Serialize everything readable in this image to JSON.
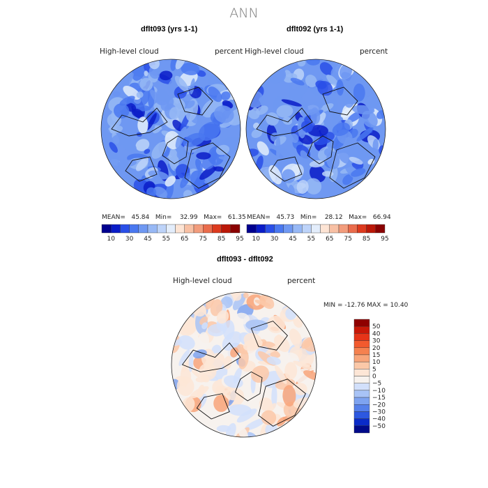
{
  "title": "ANN",
  "panels": [
    {
      "title": "dflt093 (yrs 1-1)",
      "field_label": "High-level cloud",
      "units": "percent",
      "stats": {
        "mean_label": "MEAN=",
        "mean": "45.84",
        "min_label": "Min=",
        "min": "32.99",
        "max_label": "Max=",
        "max": "61.35"
      }
    },
    {
      "title": "dflt092 (yrs 1-1)",
      "field_label": "High-level cloud",
      "units": "percent",
      "stats": {
        "mean_label": "MEAN=",
        "mean": "45.73",
        "min_label": "Min=",
        "min": "28.12",
        "max_label": "Max=",
        "max": "66.94"
      }
    }
  ],
  "diff_panel": {
    "title": "dflt093 - dflt092",
    "field_label": "High-level cloud",
    "units": "percent",
    "stats_text": "MIN = -12.76 MAX =  10.40"
  },
  "chart_data": [
    {
      "type": "heatmap",
      "title": "dflt093 (yrs 1-1)",
      "projection": "north polar stereographic",
      "variable": "High-level cloud",
      "units": "percent",
      "mean": 45.84,
      "min": 32.99,
      "max": 61.35,
      "colorbar": {
        "ticks": [
          "10",
          "30",
          "45",
          "55",
          "65",
          "75",
          "85",
          "95"
        ],
        "colors": [
          "#00008f",
          "#0a1cc8",
          "#2a4fe8",
          "#4a78f0",
          "#6f98f2",
          "#97b8f5",
          "#bdd3f9",
          "#e3edfb",
          "#fde4d4",
          "#f8c0a4",
          "#f29c7c",
          "#ea6c4c",
          "#dd3a1e",
          "#bb1808",
          "#8a0202"
        ]
      }
    },
    {
      "type": "heatmap",
      "title": "dflt092 (yrs 1-1)",
      "projection": "north polar stereographic",
      "variable": "High-level cloud",
      "units": "percent",
      "mean": 45.73,
      "min": 28.12,
      "max": 66.94,
      "colorbar": {
        "ticks": [
          "10",
          "30",
          "45",
          "55",
          "65",
          "75",
          "85",
          "95"
        ],
        "colors": [
          "#00008f",
          "#0a1cc8",
          "#2a4fe8",
          "#4a78f0",
          "#6f98f2",
          "#97b8f5",
          "#bdd3f9",
          "#e3edfb",
          "#fde4d4",
          "#f8c0a4",
          "#f29c7c",
          "#ea6c4c",
          "#dd3a1e",
          "#bb1808",
          "#8a0202"
        ]
      }
    },
    {
      "type": "heatmap",
      "title": "dflt093 - dflt092",
      "projection": "north polar stereographic",
      "variable": "High-level cloud",
      "units": "percent",
      "min": -12.76,
      "max": 10.4,
      "colorbar": {
        "ticks": [
          "50",
          "40",
          "30",
          "20",
          "15",
          "10",
          "5",
          "0",
          "−5",
          "−10",
          "−15",
          "−20",
          "−30",
          "−40",
          "−50"
        ],
        "colors": [
          "#8f0000",
          "#c81808",
          "#e63418",
          "#f25a2e",
          "#f5814f",
          "#f8a57a",
          "#fbc8a8",
          "#fde6d6",
          "#f7f2ee",
          "#d2e0fb",
          "#a8c3f6",
          "#7ea3f0",
          "#5580ea",
          "#2d58e0",
          "#0a2bc8",
          "#000a8a"
        ]
      }
    }
  ]
}
